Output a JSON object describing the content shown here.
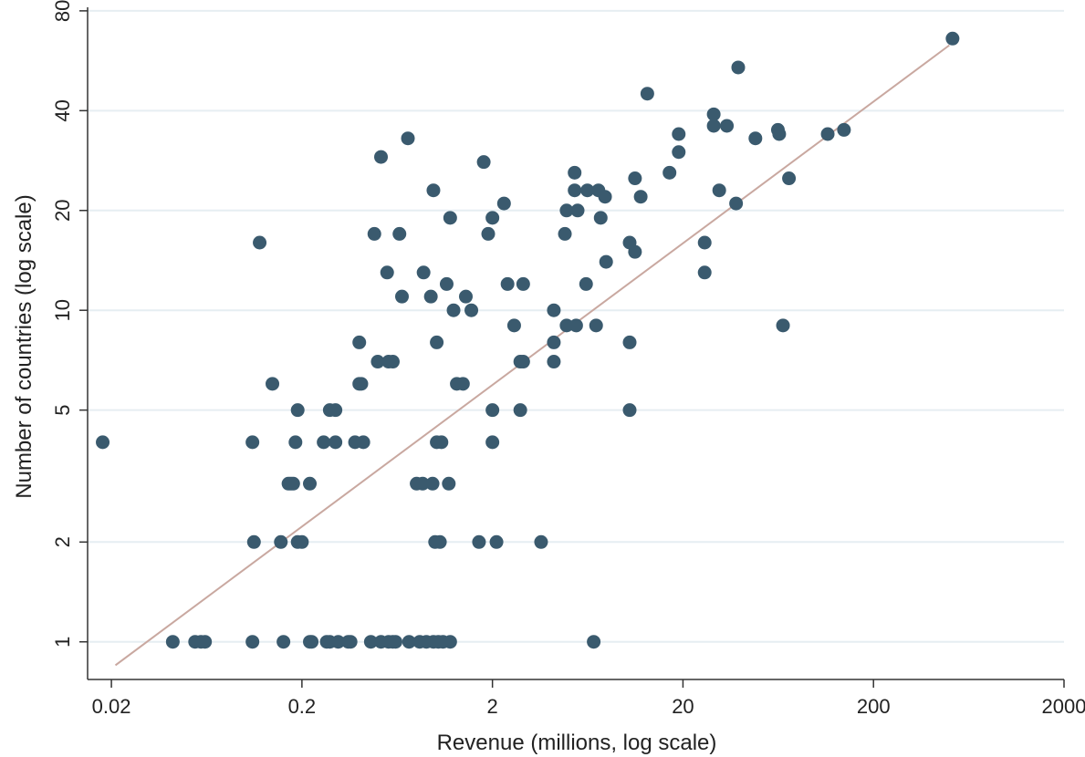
{
  "chart_data": {
    "type": "scatter",
    "title": "",
    "xlabel": "Revenue (millions, log scale)",
    "ylabel": "Number of countries (log scale)",
    "x_scale": "log",
    "y_scale": "log",
    "xlim": [
      0.015,
      2000
    ],
    "ylim": [
      0.77,
      82
    ],
    "x_ticks": [
      0.02,
      0.2,
      2,
      20,
      200,
      2000
    ],
    "x_tick_labels": [
      "0.02",
      "0.2",
      "2",
      "20",
      "200",
      "2000"
    ],
    "y_ticks": [
      1,
      2,
      5,
      10,
      20,
      40,
      80
    ],
    "y_tick_labels": [
      "1",
      "2",
      "5",
      "10",
      "20",
      "40",
      "80"
    ],
    "grid": "horizontal",
    "legend": "none",
    "colors": {
      "points": "#3a5a6e",
      "fit_line": "#c9a8a0",
      "grid": "#e6eef2",
      "axis": "#333333"
    },
    "fit_line": {
      "x": [
        0.021,
        500
      ],
      "y": [
        0.85,
        63
      ]
    },
    "series": [
      {
        "points": [
          {
            "x": 0.018,
            "y": 4
          },
          {
            "x": 0.042,
            "y": 1
          },
          {
            "x": 0.055,
            "y": 1
          },
          {
            "x": 0.059,
            "y": 1
          },
          {
            "x": 0.062,
            "y": 1
          },
          {
            "x": 0.11,
            "y": 4
          },
          {
            "x": 0.11,
            "y": 1
          },
          {
            "x": 0.112,
            "y": 2
          },
          {
            "x": 0.12,
            "y": 16
          },
          {
            "x": 0.14,
            "y": 6
          },
          {
            "x": 0.155,
            "y": 2
          },
          {
            "x": 0.16,
            "y": 1
          },
          {
            "x": 0.17,
            "y": 3
          },
          {
            "x": 0.175,
            "y": 3
          },
          {
            "x": 0.18,
            "y": 3
          },
          {
            "x": 0.185,
            "y": 4
          },
          {
            "x": 0.19,
            "y": 5
          },
          {
            "x": 0.19,
            "y": 2
          },
          {
            "x": 0.2,
            "y": 2
          },
          {
            "x": 0.22,
            "y": 3
          },
          {
            "x": 0.22,
            "y": 1
          },
          {
            "x": 0.225,
            "y": 1
          },
          {
            "x": 0.26,
            "y": 4
          },
          {
            "x": 0.27,
            "y": 1
          },
          {
            "x": 0.28,
            "y": 5
          },
          {
            "x": 0.28,
            "y": 1
          },
          {
            "x": 0.3,
            "y": 5
          },
          {
            "x": 0.3,
            "y": 4
          },
          {
            "x": 0.31,
            "y": 1
          },
          {
            "x": 0.35,
            "y": 1
          },
          {
            "x": 0.36,
            "y": 1
          },
          {
            "x": 0.38,
            "y": 4
          },
          {
            "x": 0.4,
            "y": 8
          },
          {
            "x": 0.4,
            "y": 6
          },
          {
            "x": 0.41,
            "y": 6
          },
          {
            "x": 0.42,
            "y": 4
          },
          {
            "x": 0.46,
            "y": 1
          },
          {
            "x": 0.48,
            "y": 17
          },
          {
            "x": 0.5,
            "y": 7
          },
          {
            "x": 0.52,
            "y": 29
          },
          {
            "x": 0.52,
            "y": 1
          },
          {
            "x": 0.56,
            "y": 13
          },
          {
            "x": 0.57,
            "y": 7
          },
          {
            "x": 0.57,
            "y": 1
          },
          {
            "x": 0.6,
            "y": 7
          },
          {
            "x": 0.6,
            "y": 1
          },
          {
            "x": 0.62,
            "y": 1
          },
          {
            "x": 0.65,
            "y": 17
          },
          {
            "x": 0.67,
            "y": 11
          },
          {
            "x": 0.72,
            "y": 33
          },
          {
            "x": 0.73,
            "y": 1
          },
          {
            "x": 0.8,
            "y": 3
          },
          {
            "x": 0.83,
            "y": 1
          },
          {
            "x": 0.86,
            "y": 3
          },
          {
            "x": 0.87,
            "y": 13
          },
          {
            "x": 0.9,
            "y": 1
          },
          {
            "x": 0.95,
            "y": 11
          },
          {
            "x": 0.97,
            "y": 3
          },
          {
            "x": 0.98,
            "y": 1
          },
          {
            "x": 0.98,
            "y": 23
          },
          {
            "x": 1.0,
            "y": 2
          },
          {
            "x": 1.02,
            "y": 8
          },
          {
            "x": 1.02,
            "y": 4
          },
          {
            "x": 1.04,
            "y": 1
          },
          {
            "x": 1.06,
            "y": 2
          },
          {
            "x": 1.08,
            "y": 4
          },
          {
            "x": 1.1,
            "y": 1
          },
          {
            "x": 1.15,
            "y": 12
          },
          {
            "x": 1.18,
            "y": 3
          },
          {
            "x": 1.2,
            "y": 1
          },
          {
            "x": 1.2,
            "y": 19
          },
          {
            "x": 1.25,
            "y": 10
          },
          {
            "x": 1.3,
            "y": 6
          },
          {
            "x": 1.4,
            "y": 6
          },
          {
            "x": 1.45,
            "y": 11
          },
          {
            "x": 1.55,
            "y": 10
          },
          {
            "x": 1.7,
            "y": 2
          },
          {
            "x": 1.8,
            "y": 28
          },
          {
            "x": 1.9,
            "y": 17
          },
          {
            "x": 2.0,
            "y": 5
          },
          {
            "x": 2.0,
            "y": 4
          },
          {
            "x": 2.0,
            "y": 19
          },
          {
            "x": 2.1,
            "y": 2
          },
          {
            "x": 2.3,
            "y": 21
          },
          {
            "x": 2.4,
            "y": 12
          },
          {
            "x": 2.6,
            "y": 9
          },
          {
            "x": 2.8,
            "y": 7
          },
          {
            "x": 2.8,
            "y": 5
          },
          {
            "x": 2.9,
            "y": 12
          },
          {
            "x": 2.9,
            "y": 7
          },
          {
            "x": 3.6,
            "y": 2
          },
          {
            "x": 4.2,
            "y": 10
          },
          {
            "x": 4.2,
            "y": 8
          },
          {
            "x": 4.2,
            "y": 7
          },
          {
            "x": 4.8,
            "y": 17
          },
          {
            "x": 4.9,
            "y": 20
          },
          {
            "x": 4.9,
            "y": 9
          },
          {
            "x": 5.4,
            "y": 26
          },
          {
            "x": 5.4,
            "y": 23
          },
          {
            "x": 5.5,
            "y": 9
          },
          {
            "x": 5.6,
            "y": 20
          },
          {
            "x": 6.2,
            "y": 12
          },
          {
            "x": 6.3,
            "y": 23
          },
          {
            "x": 6.8,
            "y": 1
          },
          {
            "x": 7.0,
            "y": 9
          },
          {
            "x": 7.2,
            "y": 23
          },
          {
            "x": 7.4,
            "y": 19
          },
          {
            "x": 7.8,
            "y": 22
          },
          {
            "x": 7.9,
            "y": 14
          },
          {
            "x": 10.5,
            "y": 16
          },
          {
            "x": 10.5,
            "y": 8
          },
          {
            "x": 10.5,
            "y": 5
          },
          {
            "x": 11.2,
            "y": 25
          },
          {
            "x": 11.2,
            "y": 15
          },
          {
            "x": 12,
            "y": 22
          },
          {
            "x": 13,
            "y": 45
          },
          {
            "x": 17,
            "y": 26
          },
          {
            "x": 19,
            "y": 34
          },
          {
            "x": 19,
            "y": 30
          },
          {
            "x": 26,
            "y": 16
          },
          {
            "x": 26,
            "y": 13
          },
          {
            "x": 29,
            "y": 39
          },
          {
            "x": 29,
            "y": 36
          },
          {
            "x": 31,
            "y": 23
          },
          {
            "x": 34,
            "y": 36
          },
          {
            "x": 38,
            "y": 21
          },
          {
            "x": 39,
            "y": 54
          },
          {
            "x": 48,
            "y": 33
          },
          {
            "x": 63,
            "y": 35
          },
          {
            "x": 64,
            "y": 34
          },
          {
            "x": 67,
            "y": 9
          },
          {
            "x": 72,
            "y": 25
          },
          {
            "x": 115,
            "y": 34
          },
          {
            "x": 140,
            "y": 35
          },
          {
            "x": 520,
            "y": 66
          }
        ]
      }
    ]
  }
}
